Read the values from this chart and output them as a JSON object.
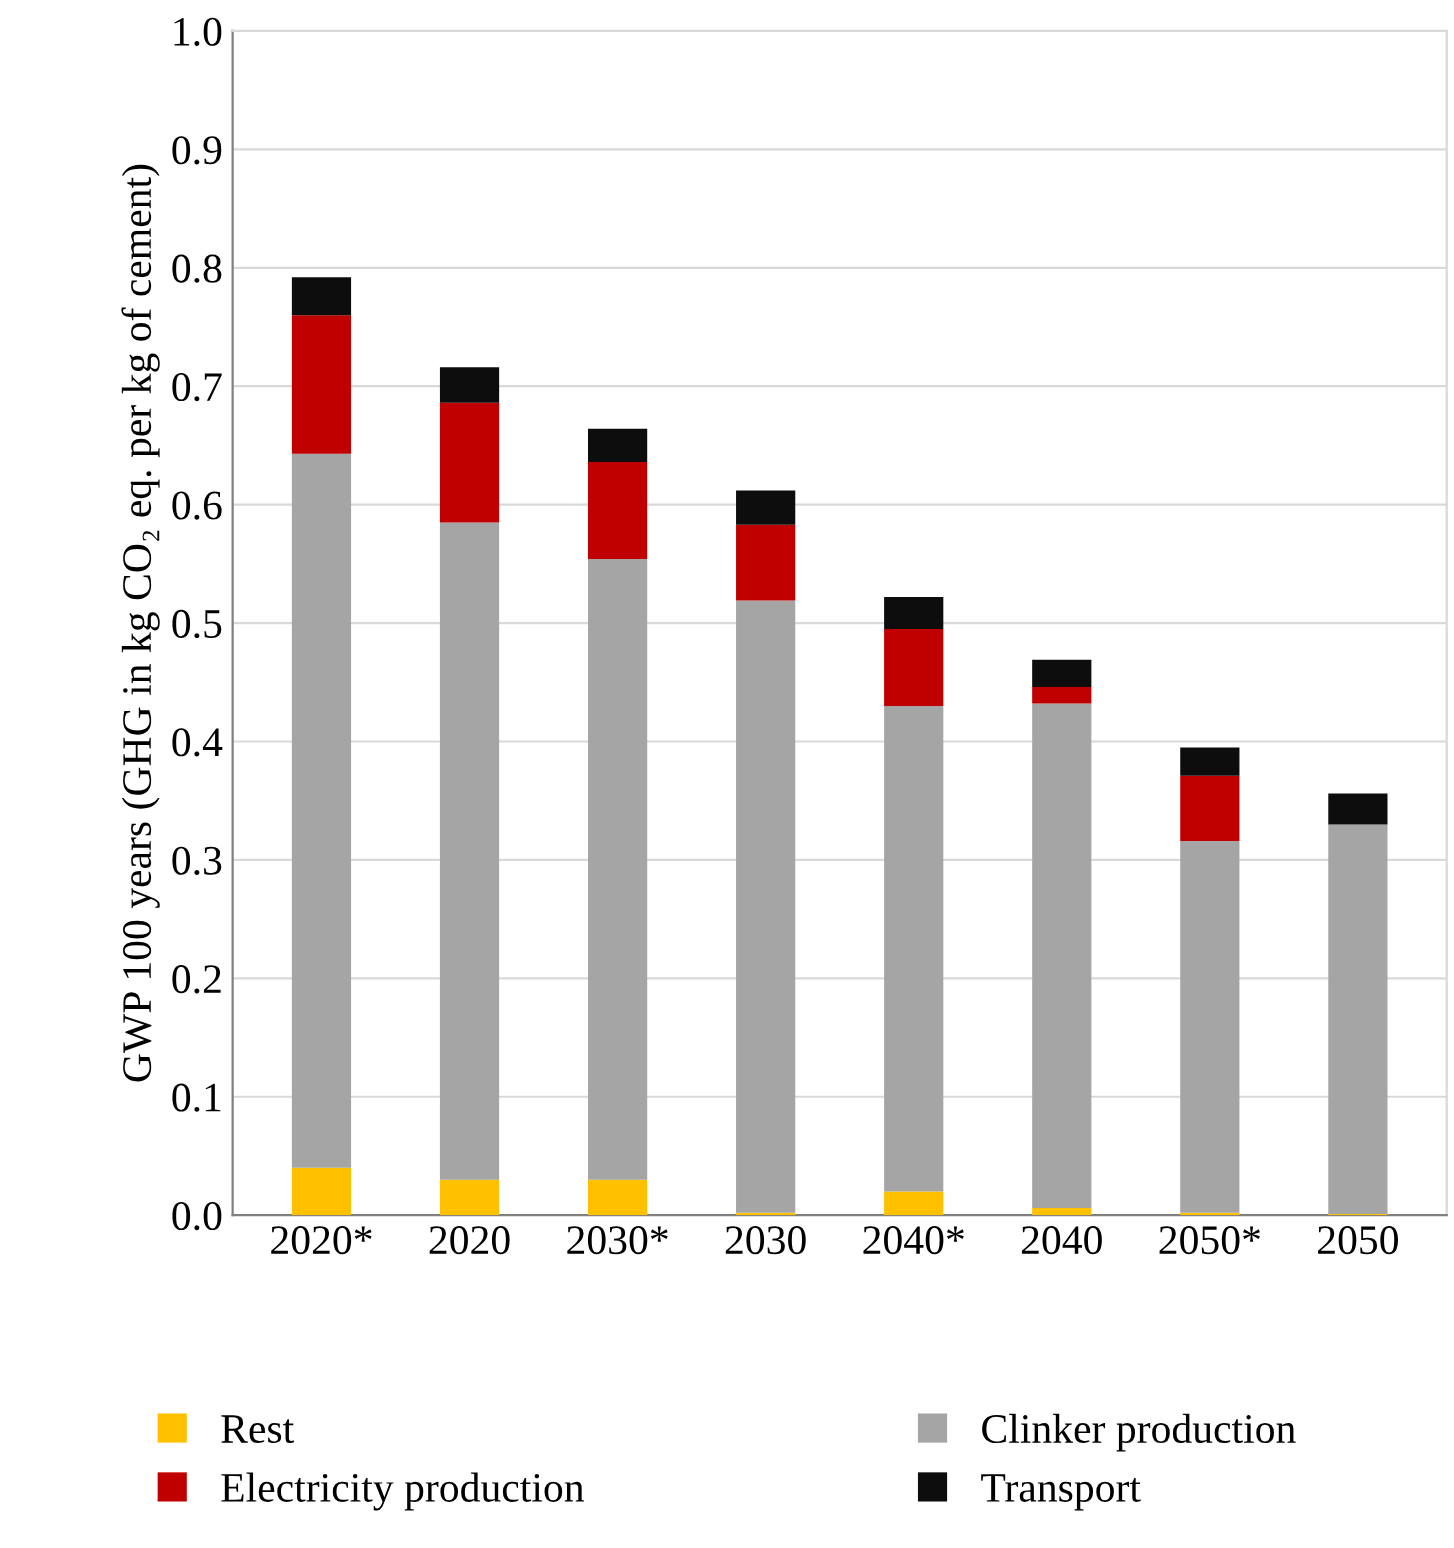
{
  "chart_data": {
    "type": "bar",
    "stacked": true,
    "ylabel": "GWP 100 years (GHG in kg CO₂ eq. per kg of cement)",
    "categories": [
      "2020*",
      "2020",
      "2030*",
      "2030",
      "2040*",
      "2040",
      "2050*",
      "2050"
    ],
    "series": [
      {
        "name": "Rest",
        "color": "#ffc000",
        "values": [
          0.04,
          0.03,
          0.03,
          0.002,
          0.02,
          0.006,
          0.002,
          0.001
        ]
      },
      {
        "name": "Clinker production",
        "color": "#a5a5a5",
        "values": [
          0.603,
          0.555,
          0.524,
          0.517,
          0.41,
          0.426,
          0.314,
          0.329
        ]
      },
      {
        "name": "Electricity production",
        "color": "#c00000",
        "values": [
          0.117,
          0.101,
          0.082,
          0.064,
          0.065,
          0.014,
          0.055,
          0.0
        ]
      },
      {
        "name": "Transport",
        "color": "#0d0d0d",
        "values": [
          0.032,
          0.03,
          0.028,
          0.029,
          0.027,
          0.023,
          0.024,
          0.026
        ]
      }
    ],
    "ylim": [
      0,
      1.0
    ],
    "yticks": [
      {
        "value": 0,
        "label": "0.0"
      },
      0.1,
      0.2,
      0.3,
      0.4,
      0.5,
      0.6,
      0.7,
      0.8,
      0.9,
      {
        "value": 1.0,
        "label": "1.0"
      }
    ],
    "grid": "y",
    "legend": "bottom"
  }
}
